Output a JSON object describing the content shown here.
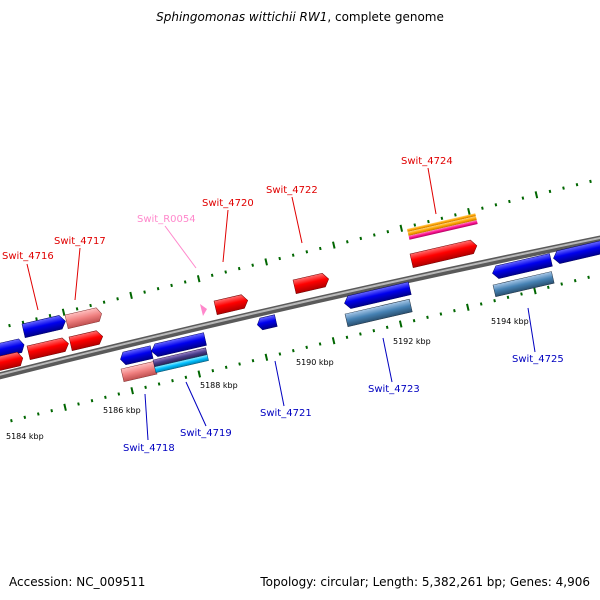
{
  "title": {
    "organism": "Sphingomonas wittichii RW1",
    "suffix": ", complete genome"
  },
  "footer": {
    "accession": "Accession: NC_009511",
    "summary": "Topology: circular; Length: 5,382,261 bp; Genes: 4,906"
  },
  "scale_labels": [
    "5184 kbp",
    "5186 kbp",
    "5188 kbp",
    "5190 kbp",
    "5192 kbp",
    "5194 kbp"
  ],
  "gene_labels": {
    "forward": [
      "Swit_4716",
      "Swit_4717",
      "Swit_R0054",
      "Swit_4720",
      "Swit_4722",
      "Swit_4724"
    ],
    "reverse": [
      "Swit_4718",
      "Swit_4719",
      "Swit_4721",
      "Swit_4723",
      "Swit_4725"
    ]
  },
  "colors": {
    "forward_label": "#e00000",
    "reverse_label": "#0000c0",
    "rna_label": "#ff88cc",
    "tick": "#006600",
    "backbone": "#808080"
  }
}
